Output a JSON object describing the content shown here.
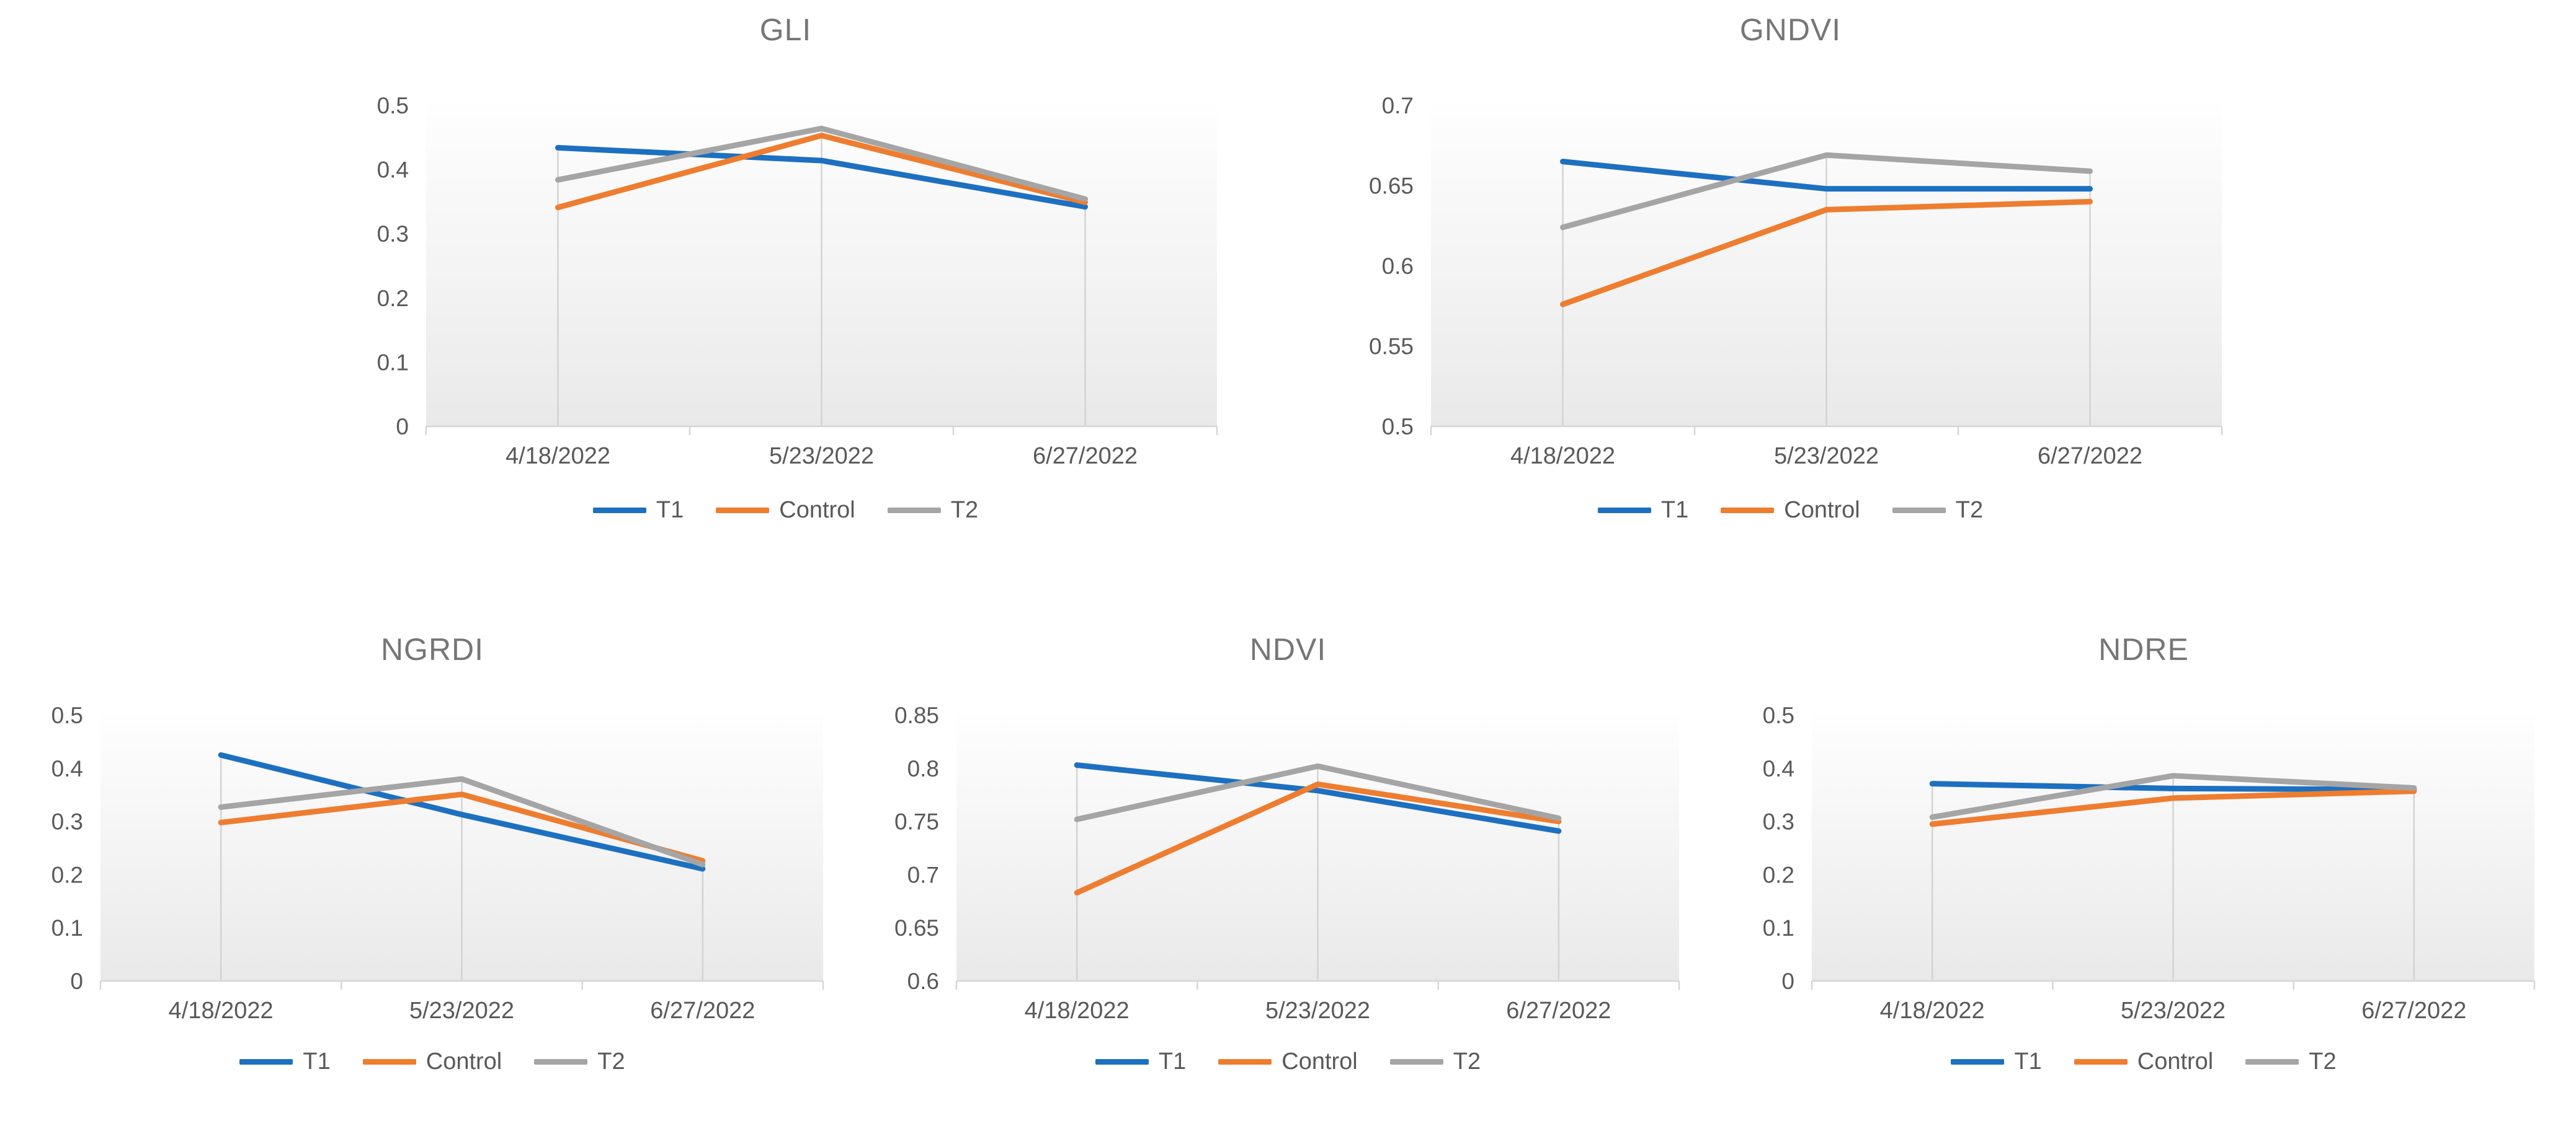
{
  "page": {
    "background": "#FFFFFF"
  },
  "colors": {
    "t1": "#1D70C0",
    "control": "#EE7D2F",
    "t2": "#A5A5A5",
    "title_text": "#767676",
    "axis_text": "#595959",
    "axis_line": "#D6D6D6",
    "drop_line": "#D3D3D3",
    "plot_fill_top": "#FEFEFE",
    "plot_fill_bottom": "#E9E9E9"
  },
  "legend": {
    "items": [
      "T1",
      "Control",
      "T2"
    ],
    "position": "bottom"
  },
  "x_categories": [
    "4/18/2022",
    "5/23/2022",
    "6/27/2022"
  ],
  "chart_data": [
    {
      "type": "line",
      "title": "GLI",
      "categories": [
        "4/18/2022",
        "5/23/2022",
        "6/27/2022"
      ],
      "xlabel": "",
      "ylabel": "",
      "ylim": [
        0,
        0.5
      ],
      "yticks": [
        0,
        0.1,
        0.2,
        0.3,
        0.4,
        0.5
      ],
      "ytick_labels": [
        "0",
        "0.1",
        "0.2",
        "0.3",
        "0.4",
        "0.5"
      ],
      "grid": "vertical-drop-lines",
      "legend_position": "bottom",
      "series": [
        {
          "name": "T1",
          "color": "#1D70C0",
          "values": [
            0.434,
            0.414,
            0.342
          ]
        },
        {
          "name": "Control",
          "color": "#EE7D2F",
          "values": [
            0.341,
            0.453,
            0.349
          ]
        },
        {
          "name": "T2",
          "color": "#A5A5A5",
          "values": [
            0.384,
            0.464,
            0.354
          ]
        }
      ]
    },
    {
      "type": "line",
      "title": "GNDVI",
      "categories": [
        "4/18/2022",
        "5/23/2022",
        "6/27/2022"
      ],
      "xlabel": "",
      "ylabel": "",
      "ylim": [
        0.5,
        0.7
      ],
      "yticks": [
        0.5,
        0.55,
        0.6,
        0.65,
        0.7
      ],
      "ytick_labels": [
        "0.5",
        "0.55",
        "0.6",
        "0.65",
        "0.7"
      ],
      "grid": "vertical-drop-lines",
      "legend_position": "bottom",
      "series": [
        {
          "name": "T1",
          "color": "#1D70C0",
          "values": [
            0.665,
            0.648,
            0.648
          ]
        },
        {
          "name": "Control",
          "color": "#EE7D2F",
          "values": [
            0.576,
            0.635,
            0.64
          ]
        },
        {
          "name": "T2",
          "color": "#A5A5A5",
          "values": [
            0.624,
            0.669,
            0.659
          ]
        }
      ]
    },
    {
      "type": "line",
      "title": "NGRDI",
      "categories": [
        "4/18/2022",
        "5/23/2022",
        "6/27/2022"
      ],
      "xlabel": "",
      "ylabel": "",
      "ylim": [
        0,
        0.5
      ],
      "yticks": [
        0,
        0.1,
        0.2,
        0.3,
        0.4,
        0.5
      ],
      "ytick_labels": [
        "0",
        "0.1",
        "0.2",
        "0.3",
        "0.4",
        "0.5"
      ],
      "grid": "vertical-drop-lines",
      "legend_position": "bottom",
      "series": [
        {
          "name": "T1",
          "color": "#1D70C0",
          "values": [
            0.425,
            0.313,
            0.211
          ]
        },
        {
          "name": "Control",
          "color": "#EE7D2F",
          "values": [
            0.298,
            0.351,
            0.226
          ]
        },
        {
          "name": "T2",
          "color": "#A5A5A5",
          "values": [
            0.327,
            0.38,
            0.219
          ]
        }
      ]
    },
    {
      "type": "line",
      "title": "NDVI",
      "categories": [
        "4/18/2022",
        "5/23/2022",
        "6/27/2022"
      ],
      "xlabel": "",
      "ylabel": "",
      "ylim": [
        0.6,
        0.85
      ],
      "yticks": [
        0.6,
        0.65,
        0.7,
        0.75,
        0.8,
        0.85
      ],
      "ytick_labels": [
        "0.6",
        "0.65",
        "0.7",
        "0.75",
        "0.8",
        "0.85"
      ],
      "grid": "vertical-drop-lines",
      "legend_position": "bottom",
      "series": [
        {
          "name": "T1",
          "color": "#1D70C0",
          "values": [
            0.803,
            0.779,
            0.741
          ]
        },
        {
          "name": "Control",
          "color": "#EE7D2F",
          "values": [
            0.683,
            0.785,
            0.75
          ]
        },
        {
          "name": "T2",
          "color": "#A5A5A5",
          "values": [
            0.752,
            0.802,
            0.753
          ]
        }
      ]
    },
    {
      "type": "line",
      "title": "NDRE",
      "categories": [
        "4/18/2022",
        "5/23/2022",
        "6/27/2022"
      ],
      "xlabel": "",
      "ylabel": "",
      "ylim": [
        0,
        0.5
      ],
      "yticks": [
        0,
        0.1,
        0.2,
        0.3,
        0.4,
        0.5
      ],
      "ytick_labels": [
        "0",
        "0.1",
        "0.2",
        "0.3",
        "0.4",
        "0.5"
      ],
      "grid": "vertical-drop-lines",
      "legend_position": "bottom",
      "series": [
        {
          "name": "T1",
          "color": "#1D70C0",
          "values": [
            0.371,
            0.362,
            0.36
          ]
        },
        {
          "name": "Control",
          "color": "#EE7D2F",
          "values": [
            0.295,
            0.344,
            0.357
          ]
        },
        {
          "name": "T2",
          "color": "#A5A5A5",
          "values": [
            0.308,
            0.386,
            0.363
          ]
        }
      ]
    }
  ]
}
